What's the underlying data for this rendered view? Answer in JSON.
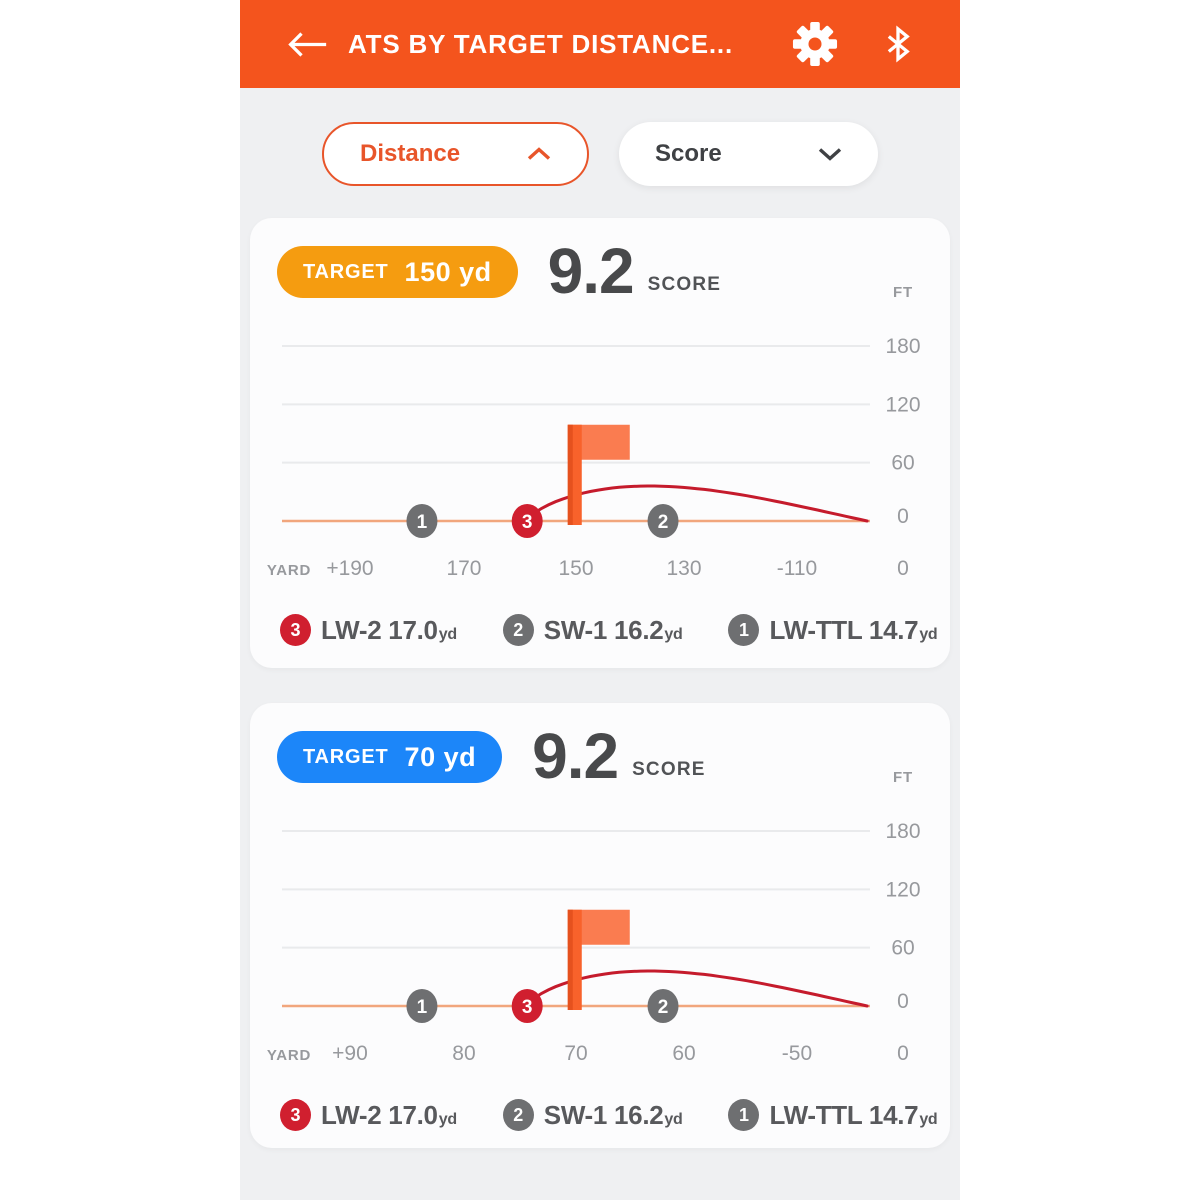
{
  "header": {
    "title": "ATS BY TARGET DISTANCE...",
    "icons": [
      "back-arrow",
      "gear",
      "bluetooth"
    ]
  },
  "filters": {
    "distance_label": "Distance",
    "score_label": "Score"
  },
  "colors": {
    "header_orange": "#F4541D",
    "badge_orange": "#F59C10",
    "badge_blue": "#1C86F9",
    "marker_red": "#D01F2F",
    "marker_gray": "#6E6F71",
    "curve_red": "#C51B2C",
    "baseline_orange": "#F1A67D",
    "page_background": "#EFF0F2"
  },
  "legend": {
    "unit": "yd",
    "items": [
      {
        "num": "3",
        "color": "#D01F2F",
        "club": "LW-2",
        "value": "17.0"
      },
      {
        "num": "2",
        "color": "#6E6F71",
        "club": "SW-1",
        "value": "16.2"
      },
      {
        "num": "1",
        "color": "#6E6F71",
        "club": "LW-TTL",
        "value": "14.7"
      }
    ]
  },
  "chart_data": [
    {
      "type": "line",
      "target_label": "TARGET",
      "target_value": "150 yd",
      "target_color": "#F59C10",
      "score": "9.2",
      "score_label": "SCORE",
      "y_axis": {
        "label": "FT",
        "ticks": [
          180,
          120,
          60,
          0
        ],
        "max": 180
      },
      "x_axis": {
        "label": "YARD",
        "ticks": [
          "+190",
          "170",
          "150",
          "130",
          "-110",
          "0"
        ]
      },
      "flag": {
        "x_frac": 0.486,
        "top_ft": 99,
        "banner_bottom_ft": 63
      },
      "markers": [
        {
          "num": "1",
          "x_frac": 0.238,
          "color": "#6E6F71"
        },
        {
          "num": "3",
          "x_frac": 0.417,
          "color": "#D01F2F"
        },
        {
          "num": "2",
          "x_frac": 0.648,
          "color": "#6E6F71"
        }
      ],
      "curve": {
        "start_frac": 0.417,
        "peak_frac": 0.625,
        "end_frac": 0.995,
        "peak_ft": 36,
        "color": "#C51B2C"
      }
    },
    {
      "type": "line",
      "target_label": "TARGET",
      "target_value": "70 yd",
      "target_color": "#1C86F9",
      "score": "9.2",
      "score_label": "SCORE",
      "y_axis": {
        "label": "FT",
        "ticks": [
          180,
          120,
          60,
          0
        ],
        "max": 180
      },
      "x_axis": {
        "label": "YARD",
        "ticks": [
          "+90",
          "80",
          "70",
          "60",
          "-50",
          "0"
        ]
      },
      "flag": {
        "x_frac": 0.486,
        "top_ft": 99,
        "banner_bottom_ft": 63
      },
      "markers": [
        {
          "num": "1",
          "x_frac": 0.238,
          "color": "#6E6F71"
        },
        {
          "num": "3",
          "x_frac": 0.417,
          "color": "#D01F2F"
        },
        {
          "num": "2",
          "x_frac": 0.648,
          "color": "#6E6F71"
        }
      ],
      "curve": {
        "start_frac": 0.417,
        "peak_frac": 0.625,
        "end_frac": 0.995,
        "peak_ft": 36,
        "color": "#C51B2C"
      }
    }
  ]
}
